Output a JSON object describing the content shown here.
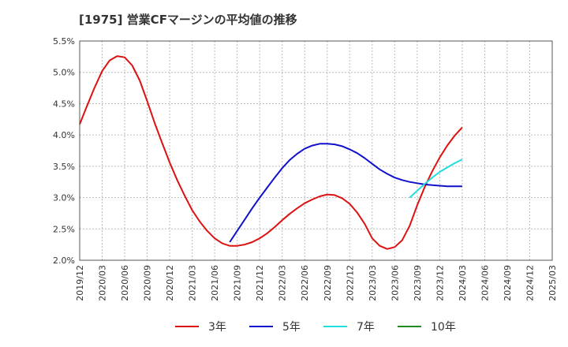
{
  "chart_data": {
    "type": "line",
    "title": "[1975]  営業CFマージンの平均値の推移",
    "xlabel": "",
    "ylabel": "",
    "ylim": [
      2.0,
      5.5
    ],
    "y_ticks": [
      "2.0%",
      "2.5%",
      "3.0%",
      "3.5%",
      "4.0%",
      "4.5%",
      "5.0%",
      "5.5%"
    ],
    "x_ticks": [
      "2019/12",
      "2020/03",
      "2020/06",
      "2020/09",
      "2020/12",
      "2021/03",
      "2021/06",
      "2021/09",
      "2021/12",
      "2022/03",
      "2022/06",
      "2022/09",
      "2022/12",
      "2023/03",
      "2023/06",
      "2023/09",
      "2023/12",
      "2024/03",
      "2024/06",
      "2024/09",
      "2024/12",
      "2025/03"
    ],
    "grid": true,
    "legend_position": "bottom",
    "series": [
      {
        "name": "3年",
        "color": "#dd1111",
        "x": [
          "2019/12",
          "2020/01",
          "2020/02",
          "2020/03",
          "2020/04",
          "2020/05",
          "2020/06",
          "2020/07",
          "2020/08",
          "2020/09",
          "2020/10",
          "2020/11",
          "2020/12",
          "2021/01",
          "2021/02",
          "2021/03",
          "2021/04",
          "2021/05",
          "2021/06",
          "2021/07",
          "2021/08",
          "2021/09",
          "2021/10",
          "2021/11",
          "2021/12",
          "2022/01",
          "2022/02",
          "2022/03",
          "2022/04",
          "2022/05",
          "2022/06",
          "2022/07",
          "2022/08",
          "2022/09",
          "2022/10",
          "2022/11",
          "2022/12",
          "2023/01",
          "2023/02",
          "2023/03",
          "2023/04",
          "2023/05",
          "2023/06",
          "2023/07",
          "2023/08",
          "2023/09",
          "2023/10",
          "2023/11",
          "2023/12",
          "2024/01",
          "2024/02",
          "2024/03"
        ],
        "values": [
          4.17,
          4.47,
          4.76,
          5.02,
          5.19,
          5.26,
          5.24,
          5.11,
          4.87,
          4.54,
          4.19,
          3.87,
          3.56,
          3.28,
          3.03,
          2.8,
          2.62,
          2.47,
          2.35,
          2.27,
          2.23,
          2.23,
          2.25,
          2.29,
          2.35,
          2.43,
          2.53,
          2.64,
          2.74,
          2.83,
          2.91,
          2.97,
          3.02,
          3.05,
          3.04,
          2.99,
          2.9,
          2.76,
          2.58,
          2.35,
          2.23,
          2.18,
          2.21,
          2.32,
          2.55,
          2.88,
          3.17,
          3.42,
          3.64,
          3.83,
          3.99,
          4.12
        ]
      },
      {
        "name": "5年",
        "color": "#1111cc",
        "x": [
          "2021/08",
          "2021/09",
          "2021/10",
          "2021/11",
          "2021/12",
          "2022/01",
          "2022/02",
          "2022/03",
          "2022/04",
          "2022/05",
          "2022/06",
          "2022/07",
          "2022/08",
          "2022/09",
          "2022/10",
          "2022/11",
          "2022/12",
          "2023/01",
          "2023/02",
          "2023/03",
          "2023/04",
          "2023/05",
          "2023/06",
          "2023/07",
          "2023/08",
          "2023/09",
          "2023/10",
          "2023/11",
          "2023/12",
          "2024/01",
          "2024/02",
          "2024/03"
        ],
        "values": [
          2.29,
          2.47,
          2.65,
          2.83,
          3.0,
          3.16,
          3.32,
          3.47,
          3.6,
          3.7,
          3.78,
          3.83,
          3.86,
          3.86,
          3.85,
          3.82,
          3.77,
          3.71,
          3.63,
          3.54,
          3.45,
          3.38,
          3.32,
          3.28,
          3.25,
          3.23,
          3.21,
          3.2,
          3.19,
          3.18,
          3.18,
          3.18
        ]
      },
      {
        "name": "7年",
        "color": "#22dddd",
        "x": [
          "2023/08",
          "2023/09",
          "2023/10",
          "2023/11",
          "2023/12",
          "2024/01",
          "2024/02",
          "2024/03"
        ],
        "values": [
          3.0,
          3.11,
          3.22,
          3.32,
          3.41,
          3.48,
          3.55,
          3.61
        ]
      },
      {
        "name": "10年",
        "color": "#228822",
        "x": [],
        "values": []
      }
    ]
  }
}
